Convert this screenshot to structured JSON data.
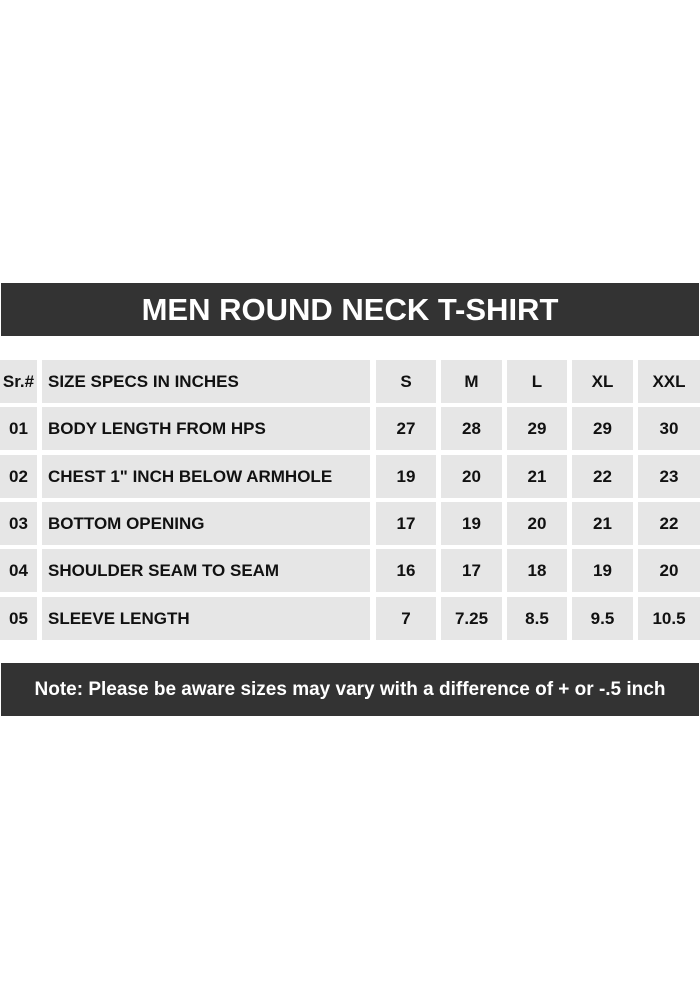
{
  "title": "MEN ROUND NECK T-SHIRT",
  "headers": [
    "Sr.#",
    "SIZE SPECS IN INCHES",
    "S",
    "M",
    "L",
    "XL",
    "XXL"
  ],
  "rows": [
    [
      "01",
      "BODY LENGTH FROM HPS",
      "27",
      "28",
      "29",
      "29",
      "30"
    ],
    [
      "02",
      "CHEST 1\" INCH BELOW ARMHOLE",
      "19",
      "20",
      "21",
      "22",
      "23"
    ],
    [
      "03",
      "BOTTOM OPENING",
      "17",
      "19",
      "20",
      "21",
      "22"
    ],
    [
      "04",
      "SHOULDER SEAM TO SEAM",
      "16",
      "17",
      "18",
      "19",
      "20"
    ],
    [
      "05",
      "SLEEVE LENGTH",
      "7",
      "7.25",
      "8.5",
      "9.5",
      "10.5"
    ]
  ],
  "note": "Note: Please be aware sizes may vary with a difference of + or -.5 inch",
  "colors": {
    "bar": "#333333",
    "cell": "#e6e6e6"
  }
}
